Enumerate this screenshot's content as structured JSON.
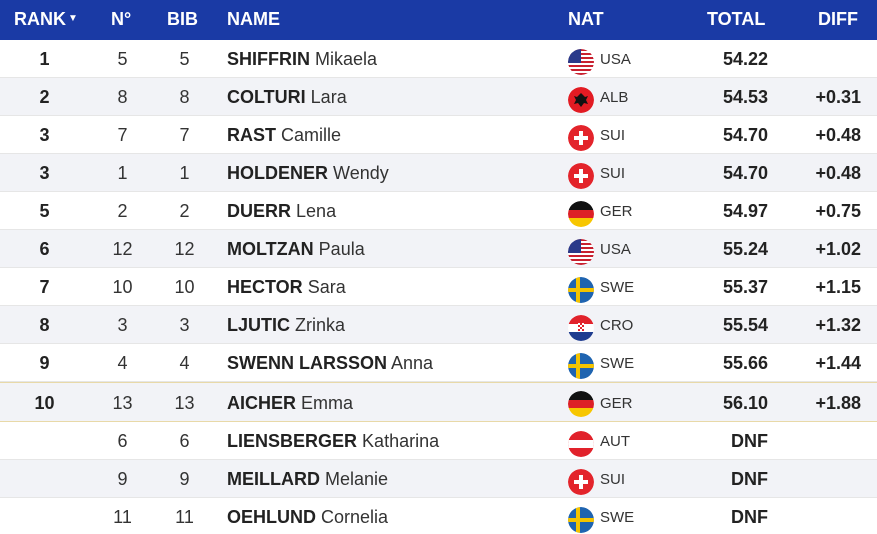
{
  "header": {
    "rank": "RANK",
    "no": "N°",
    "bib": "BIB",
    "name": "NAME",
    "nat": "NAT",
    "total": "TOTAL",
    "diff": "DIFF"
  },
  "rows": [
    {
      "rank": "1",
      "no": "5",
      "bib": "5",
      "last": "SHIFFRIN",
      "first": "Mikaela",
      "nat": "USA",
      "total": "54.22",
      "diff": ""
    },
    {
      "rank": "2",
      "no": "8",
      "bib": "8",
      "last": "COLTURI",
      "first": "Lara",
      "nat": "ALB",
      "total": "54.53",
      "diff": "+0.31"
    },
    {
      "rank": "3",
      "no": "7",
      "bib": "7",
      "last": "RAST",
      "first": "Camille",
      "nat": "SUI",
      "total": "54.70",
      "diff": "+0.48"
    },
    {
      "rank": "3",
      "no": "1",
      "bib": "1",
      "last": "HOLDENER",
      "first": "Wendy",
      "nat": "SUI",
      "total": "54.70",
      "diff": "+0.48"
    },
    {
      "rank": "5",
      "no": "2",
      "bib": "2",
      "last": "DUERR",
      "first": "Lena",
      "nat": "GER",
      "total": "54.97",
      "diff": "+0.75"
    },
    {
      "rank": "6",
      "no": "12",
      "bib": "12",
      "last": "MOLTZAN",
      "first": "Paula",
      "nat": "USA",
      "total": "55.24",
      "diff": "+1.02"
    },
    {
      "rank": "7",
      "no": "10",
      "bib": "10",
      "last": "HECTOR",
      "first": "Sara",
      "nat": "SWE",
      "total": "55.37",
      "diff": "+1.15"
    },
    {
      "rank": "8",
      "no": "3",
      "bib": "3",
      "last": "LJUTIC",
      "first": "Zrinka",
      "nat": "CRO",
      "total": "55.54",
      "diff": "+1.32"
    },
    {
      "rank": "9",
      "no": "4",
      "bib": "4",
      "last": "SWENN LARSSON",
      "first": "Anna",
      "nat": "SWE",
      "total": "55.66",
      "diff": "+1.44"
    },
    {
      "rank": "10",
      "no": "13",
      "bib": "13",
      "last": "AICHER",
      "first": "Emma",
      "nat": "GER",
      "total": "56.10",
      "diff": "+1.88"
    },
    {
      "rank": "",
      "no": "6",
      "bib": "6",
      "last": "LIENSBERGER",
      "first": "Katharina",
      "nat": "AUT",
      "total": "DNF",
      "diff": ""
    },
    {
      "rank": "",
      "no": "9",
      "bib": "9",
      "last": "MEILLARD",
      "first": "Melanie",
      "nat": "SUI",
      "total": "DNF",
      "diff": ""
    },
    {
      "rank": "",
      "no": "11",
      "bib": "11",
      "last": "OEHLUND",
      "first": "Cornelia",
      "nat": "SWE",
      "total": "DNF",
      "diff": ""
    }
  ],
  "colors": {
    "header_bg": "#1a3aa5",
    "alt_row": "#f2f3f7",
    "separator": "#e8d9a8"
  }
}
